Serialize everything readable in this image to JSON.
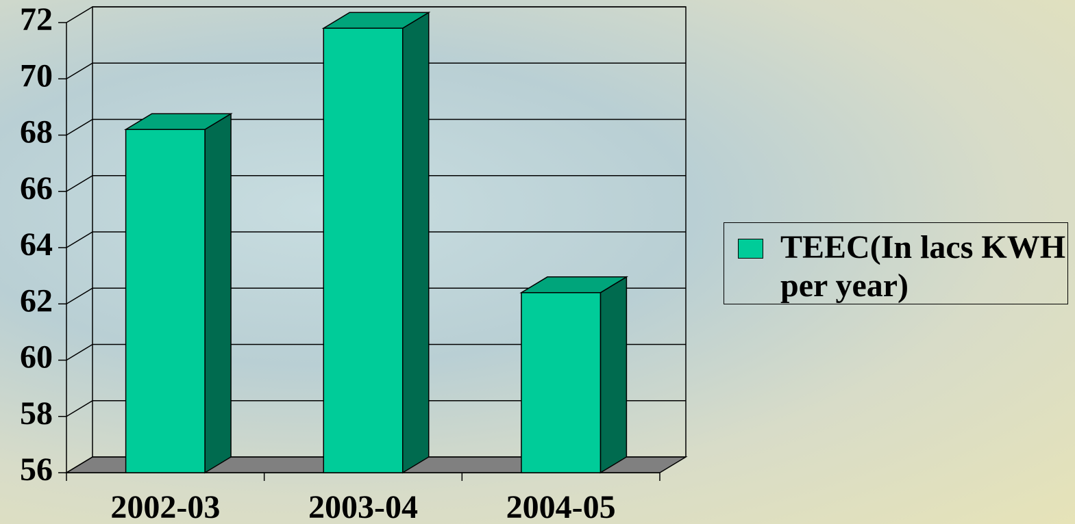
{
  "chart_data": {
    "type": "bar3d",
    "categories": [
      "2002-03",
      "2003-04",
      "2004-05"
    ],
    "series": [
      {
        "name": "TEEC(In lacs KWH per year)",
        "color": "#00cc99",
        "values": [
          68.2,
          71.8,
          62.4
        ]
      }
    ],
    "ylim": [
      56,
      72
    ],
    "yticks": [
      56,
      58,
      60,
      62,
      64,
      66,
      68,
      70,
      72
    ],
    "grid": true,
    "legend": "right"
  }
}
